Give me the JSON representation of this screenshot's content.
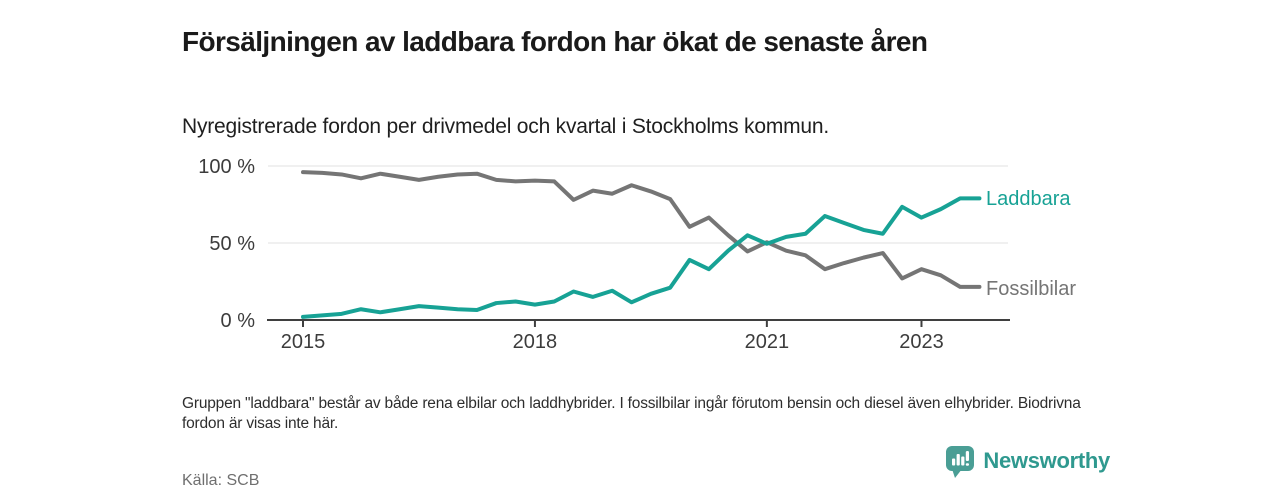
{
  "header": {
    "title": "Försäljningen av laddbara fordon har ökat de senaste åren",
    "subtitle": "Nyregistrerade fordon per drivmedel och kvartal i Stockholms kommun."
  },
  "chart_data": {
    "type": "line",
    "x_unit": "quarter",
    "quarters": [
      "2015 K1",
      "2015 K2",
      "2015 K3",
      "2015 K4",
      "2016 K1",
      "2016 K2",
      "2016 K3",
      "2016 K4",
      "2017 K1",
      "2017 K2",
      "2017 K3",
      "2017 K4",
      "2018 K1",
      "2018 K2",
      "2018 K3",
      "2018 K4",
      "2019 K1",
      "2019 K2",
      "2019 K3",
      "2019 K4",
      "2020 K1",
      "2020 K2",
      "2020 K3",
      "2020 K4",
      "2021 K1",
      "2021 K2",
      "2021 K3",
      "2021 K4",
      "2022 K1",
      "2022 K2",
      "2022 K3",
      "2022 K4",
      "2023 K1",
      "2023 K2",
      "2023 K3",
      "2023 K4"
    ],
    "series": [
      {
        "name": "Laddbara",
        "color": "#17a295",
        "values": [
          2,
          3,
          4,
          7,
          5,
          7,
          9,
          8,
          7,
          6.5,
          11,
          12,
          10,
          12,
          18.5,
          15,
          19,
          11.5,
          17,
          21,
          39,
          33,
          45,
          55,
          49.5,
          54,
          56,
          67.5,
          63,
          58.5,
          56,
          73.5,
          66.5,
          72,
          79,
          79
        ]
      },
      {
        "name": "Fossilbilar",
        "color": "#757575",
        "values": [
          96,
          95.5,
          94.5,
          92,
          95,
          93,
          91,
          93,
          94.5,
          95,
          91,
          90,
          90.5,
          90,
          78,
          84,
          82,
          87.5,
          83.5,
          78.5,
          60.5,
          66.5,
          55,
          44.5,
          50.5,
          45,
          42,
          33,
          37,
          40.5,
          43.5,
          27,
          33,
          29,
          21.5,
          21.5
        ]
      }
    ],
    "ylim": [
      0,
      100
    ],
    "y_ticks": [
      "0 %",
      "50 %",
      "100 %"
    ],
    "x_tick_years": [
      2015,
      2018,
      2021,
      2023
    ],
    "grid": "horizontal",
    "legend_position": "line-end-labels"
  },
  "footer": {
    "note": "Gruppen \"laddbara\" består av både rena elbilar och laddhybrider. I fossilbilar ingår förutom bensin och diesel även elhybrider. Biodrivna fordon är visas inte här.",
    "source": "Källa: SCB",
    "brand": "Newsworthy"
  },
  "colors": {
    "laddbara": "#17a295",
    "fossilbilar": "#757575",
    "axis": "#3f3f3f",
    "grid": "#e0e0e0",
    "brand": "#2f998f",
    "brand_icon": "#4a9e95"
  }
}
